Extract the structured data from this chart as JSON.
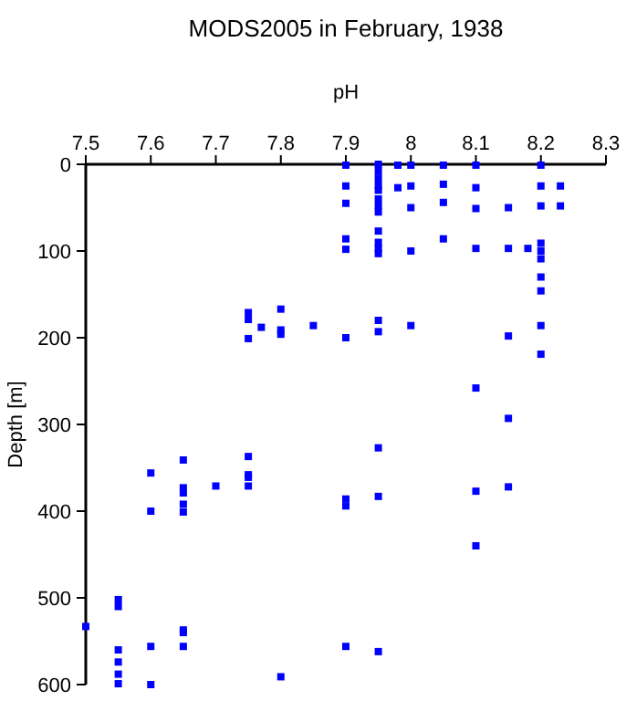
{
  "chart_data": {
    "type": "scatter",
    "title": "MODS2005 in February, 1938",
    "xlabel": "pH",
    "ylabel": "Depth [m]",
    "xlim": [
      7.5,
      8.3
    ],
    "xticks": [
      7.5,
      7.6,
      7.7,
      7.8,
      7.9,
      8,
      8.1,
      8.2,
      8.3
    ],
    "ylim": [
      600,
      0
    ],
    "yticks": [
      0,
      100,
      200,
      300,
      400,
      500,
      600
    ],
    "grid": false,
    "marker": "square",
    "series": [
      {
        "color": "#0000ff",
        "x": [
          7.9,
          7.9,
          7.9,
          7.9,
          7.9,
          7.9,
          7.9,
          7.9,
          7.9,
          7.95,
          7.95,
          7.95,
          7.95,
          7.95,
          7.95,
          7.95,
          7.95,
          7.95,
          7.95,
          7.95,
          7.95,
          7.95,
          7.95,
          7.95,
          7.95,
          7.95,
          7.98,
          7.98,
          8,
          8,
          8,
          8,
          8,
          8.05,
          8.05,
          8.05,
          8.05,
          8.1,
          8.1,
          8.1,
          8.1,
          8.1,
          8.1,
          8.1,
          8.15,
          8.15,
          8.15,
          8.15,
          8.15,
          8.18,
          8.2,
          8.2,
          8.2,
          8.2,
          8.2,
          8.2,
          8.2,
          8.2,
          8.2,
          8.2,
          8.23,
          8.23,
          7.75,
          7.75,
          7.75,
          7.77,
          7.8,
          7.8,
          7.8,
          7.85,
          7.5,
          7.55,
          7.55,
          7.55,
          7.55,
          7.55,
          7.55,
          7.6,
          7.6,
          7.6,
          7.6,
          7.65,
          7.65,
          7.65,
          7.65,
          7.65,
          7.65,
          7.65,
          7.65,
          7.7,
          7.75,
          7.75,
          7.75,
          7.75,
          7.8
        ],
        "values": [
          1,
          25,
          45,
          86,
          98,
          200,
          386,
          394,
          556,
          0,
          8,
          16,
          24,
          30,
          40,
          48,
          55,
          77,
          90,
          97,
          103,
          180,
          193,
          327,
          383,
          562,
          1,
          27,
          1,
          25,
          50,
          100,
          186,
          1,
          23,
          44,
          86,
          1,
          27,
          51,
          97,
          258,
          377,
          440,
          50,
          97,
          198,
          293,
          372,
          97,
          1,
          25,
          48,
          91,
          100,
          109,
          130,
          146,
          186,
          219,
          25,
          48,
          171,
          179,
          201,
          188,
          167,
          191,
          196,
          186,
          533,
          502,
          510,
          560,
          574,
          588,
          599,
          356,
          400,
          556,
          600,
          341,
          373,
          379,
          392,
          401,
          537,
          540,
          556,
          371,
          337,
          358,
          361,
          371,
          591
        ]
      }
    ]
  }
}
